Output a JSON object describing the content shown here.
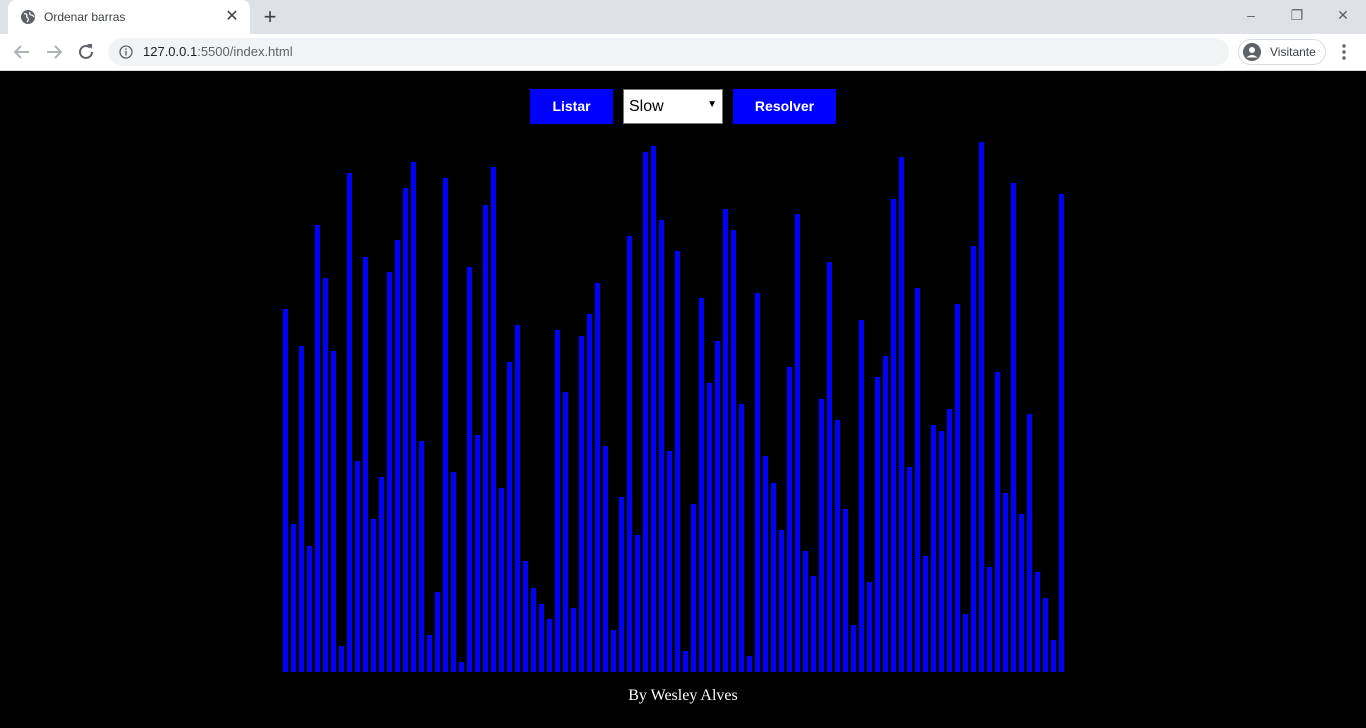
{
  "browser": {
    "tab_title": "Ordenar barras",
    "tab_close": "✕",
    "new_tab": "+",
    "url_host": "127.0.0.1",
    "url_rest": ":5500/index.html",
    "profile_label": "Visitante",
    "window_controls": {
      "minimize": "–",
      "restore": "❐",
      "close": "✕"
    }
  },
  "controls": {
    "list_button": "Listar",
    "speed_value": "Slow",
    "speed_arrow": "▼",
    "solve_button": "Resolver"
  },
  "footer": {
    "text": "By Wesley Alves"
  },
  "colors": {
    "bar": "#0000ff",
    "background": "#000000",
    "button": "#0000ff"
  },
  "bars": [
    363,
    148,
    326,
    126,
    447,
    394,
    321,
    26,
    499,
    211,
    415,
    153,
    195,
    400,
    432,
    484,
    510,
    231,
    37,
    80,
    494,
    200,
    10,
    405,
    237,
    467,
    505,
    184,
    310,
    347,
    111,
    84,
    68,
    53,
    342,
    280,
    64,
    336,
    358,
    389,
    226,
    42,
    175,
    436,
    137,
    520,
    526,
    452,
    221,
    421,
    21,
    168,
    374,
    289,
    331,
    463,
    442,
    268,
    16,
    379,
    216,
    189,
    142,
    305,
    458,
    121,
    96,
    273,
    410,
    252,
    163,
    47,
    352,
    90,
    295,
    316,
    473,
    515,
    205,
    384,
    116,
    247,
    241,
    263,
    368,
    58,
    426,
    530,
    105,
    300,
    179,
    489,
    158,
    258,
    100,
    74,
    32,
    478
  ],
  "bars_max": 601
}
